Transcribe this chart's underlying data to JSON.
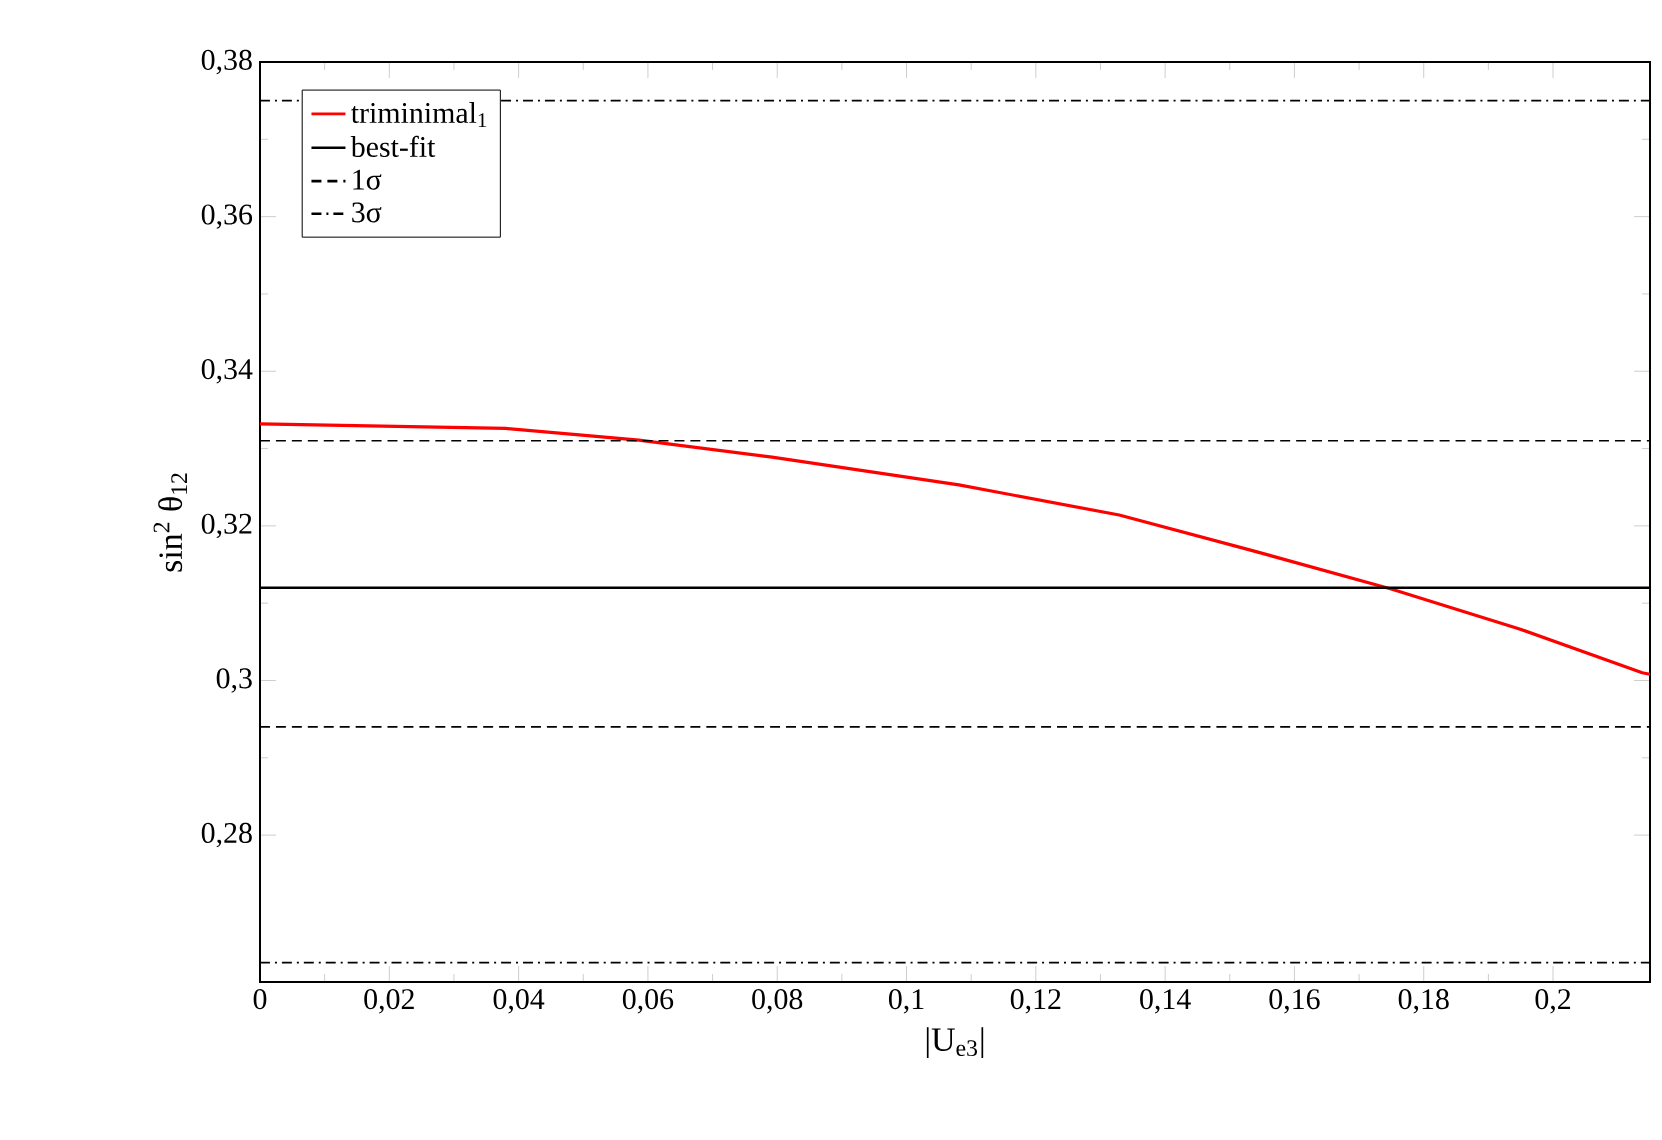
{
  "chart_data": {
    "type": "line",
    "xlabel": "|U$_{e3}$|",
    "ylabel": "sin$^{2}$ θ$_{12}$",
    "xlim": [
      0,
      0.215
    ],
    "ylim": [
      0.261,
      0.38
    ],
    "xticks": [
      0,
      {
        "value": 0.02,
        "label": "0,02"
      },
      {
        "value": 0.04,
        "label": "0,04"
      },
      {
        "value": 0.06,
        "label": "0,06"
      },
      {
        "value": 0.08,
        "label": "0,08"
      },
      {
        "value": 0.1,
        "label": "0,1"
      },
      {
        "value": 0.12,
        "label": "0,12"
      },
      {
        "value": 0.14,
        "label": "0,14"
      },
      {
        "value": 0.16,
        "label": "0,16"
      },
      {
        "value": 0.18,
        "label": "0,18"
      },
      {
        "value": 0.2,
        "label": "0,2"
      }
    ],
    "yticks": [
      {
        "value": 0.28,
        "label": "0,28"
      },
      {
        "value": 0.3,
        "label": "0,3"
      },
      {
        "value": 0.32,
        "label": "0,32"
      },
      {
        "value": 0.34,
        "label": "0,34"
      },
      {
        "value": 0.36,
        "label": "0,36"
      },
      {
        "value": 0.38,
        "label": "0,38"
      }
    ],
    "grid": false,
    "legend": "top left",
    "marker": "none",
    "series": [
      {
        "name": "triminimal$_{1}$",
        "color": "#ff0000",
        "line_style": "solid",
        "x": [
          0,
          0.038,
          0.0586,
          0.0792,
          0.1081,
          0.1329,
          0.1535,
          0.1751,
          0.1947,
          0.2138,
          0.215
        ],
        "values": [
          0.3332,
          0.3326,
          0.3311,
          0.3289,
          0.3253,
          0.3214,
          0.3168,
          0.3118,
          0.3067,
          0.301,
          0.3008
        ]
      }
    ],
    "ref_lines": [
      {
        "axis": "y",
        "value": 0.312,
        "label": "best-fit",
        "color": "#000000",
        "line_style": "solid"
      },
      {
        "axis": "y",
        "value": 0.294,
        "label": "1σ",
        "color": "#000000",
        "line_style": "dashed"
      },
      {
        "axis": "y",
        "value": 0.331,
        "color": "#000000",
        "line_style": "dashed"
      },
      {
        "axis": "y",
        "value": 0.2635,
        "label": "3σ",
        "color": "#000000",
        "line_style": "dashdot"
      },
      {
        "axis": "y",
        "value": 0.375,
        "color": "#000000",
        "line_style": "dashdot"
      }
    ]
  }
}
